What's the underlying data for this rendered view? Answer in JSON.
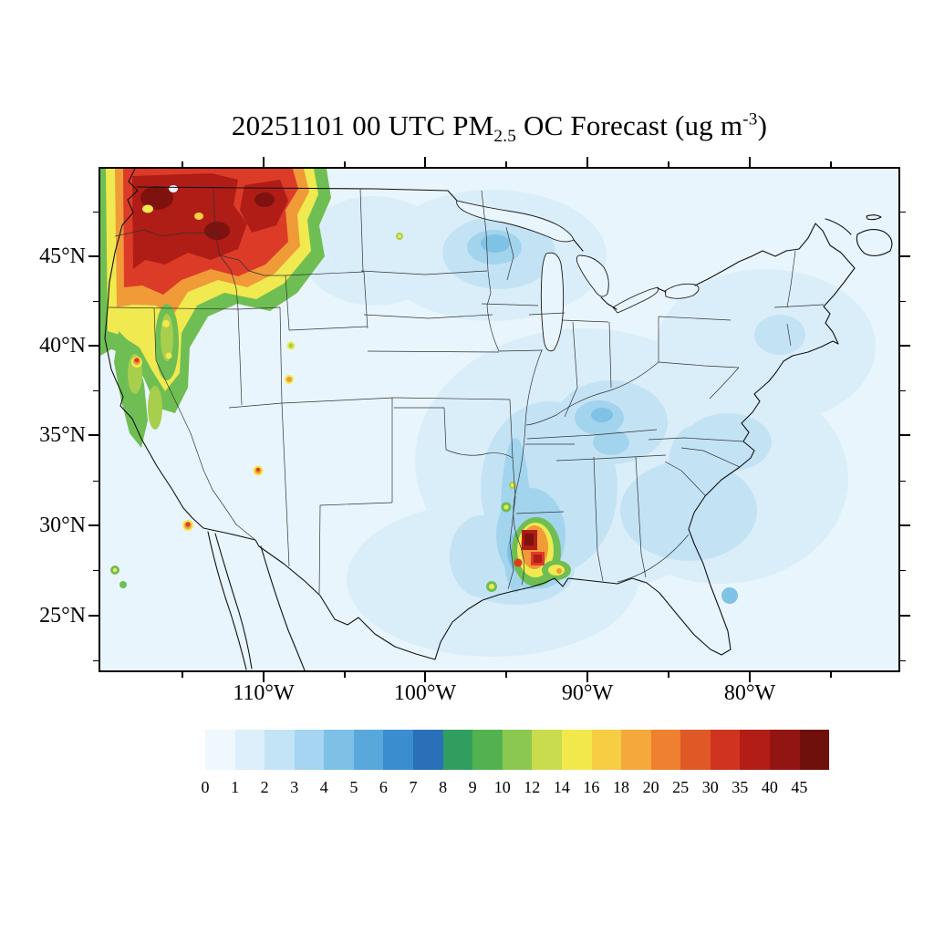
{
  "figure": {
    "title": {
      "prefix": "20251101 00 UTC PM",
      "subscript": "2.5",
      "middle": " OC Forecast (ug m",
      "superscript": "-3",
      "suffix": ")"
    }
  },
  "axes": {
    "lat": {
      "labels": [
        "45°N",
        "40°N",
        "35°N",
        "30°N",
        "25°N"
      ]
    },
    "lon": {
      "labels": [
        "110°W",
        "100°W",
        "90°W",
        "80°W"
      ]
    }
  },
  "colorbar": {
    "labels": [
      "0",
      "1",
      "2",
      "3",
      "4",
      "5",
      "6",
      "7",
      "8",
      "9",
      "10",
      "12",
      "14",
      "16",
      "18",
      "20",
      "25",
      "30",
      "35",
      "40",
      "45"
    ],
    "colors": [
      "#eef8fd",
      "#dceffa",
      "#c2e4f6",
      "#a5d5f0",
      "#7fc0e7",
      "#58a8dc",
      "#3a8ecf",
      "#2a70b8",
      "#2f9e5f",
      "#53b24f",
      "#8bc850",
      "#c8dc4e",
      "#f2e84c",
      "#f5ce43",
      "#f4a93a",
      "#ee8030",
      "#e05826",
      "#d03320",
      "#b31d17",
      "#931511",
      "#6f100c"
    ]
  },
  "chart_data": {
    "type": "heatmap",
    "title": "20251101 00 UTC PM2.5 OC Forecast (ug m-3)",
    "units": "ug m-3",
    "region": "Contiguous United States map with state borders",
    "x_ticks": [
      "110°W",
      "100°W",
      "90°W",
      "80°W"
    ],
    "y_ticks": [
      "45°N",
      "40°N",
      "35°N",
      "30°N",
      "25°N"
    ],
    "colorbar_levels": [
      0,
      1,
      2,
      3,
      4,
      5,
      6,
      7,
      8,
      9,
      10,
      12,
      14,
      16,
      18,
      20,
      25,
      30,
      35,
      40,
      45
    ],
    "colorbar_colors": [
      "#eef8fd",
      "#dceffa",
      "#c2e4f6",
      "#a5d5f0",
      "#7fc0e7",
      "#58a8dc",
      "#3a8ecf",
      "#2a70b8",
      "#2f9e5f",
      "#53b24f",
      "#8bc850",
      "#c8dc4e",
      "#f2e84c",
      "#f5ce43",
      "#f4a93a",
      "#ee8030",
      "#e05826",
      "#d03320",
      "#b31d17",
      "#931511",
      "#6f100c"
    ],
    "features": [
      {
        "area": "Pacific Northwest (WA, OR, N Idaho, W Montana)",
        "value_ugm3": "45+",
        "description": "large smoke maximum, dark red/maroon cores with orange-yellow-green fringe"
      },
      {
        "area": "Northern California coast and Sierra",
        "value_ugm3": "8-20",
        "description": "green/yellow band with isolated red spot near coast"
      },
      {
        "area": "Southern California",
        "value_ugm3": "20-30",
        "description": "small red/orange spot"
      },
      {
        "area": "Arizona",
        "value_ugm3": "14-25",
        "description": "tiny orange-red spot"
      },
      {
        "area": "Idaho/Utah border",
        "value_ugm3": "10-16",
        "description": "two tiny yellow spots"
      },
      {
        "area": "Louisiana / lower Mississippi valley",
        "value_ugm3": "25-45+",
        "description": "cluster of red and dark-red burning spots with green-yellow rings"
      },
      {
        "area": "SE Texas coast",
        "value_ugm3": "8-12",
        "description": "small green spots"
      },
      {
        "area": "Mississippi valley, Midwest, Southeast",
        "value_ugm3": "1-4",
        "description": "light to medium blue shading"
      },
      {
        "area": "Remainder of domain (oceans, plains, Mexico)",
        "value_ugm3": "0-2",
        "description": "pale blue background"
      }
    ]
  }
}
